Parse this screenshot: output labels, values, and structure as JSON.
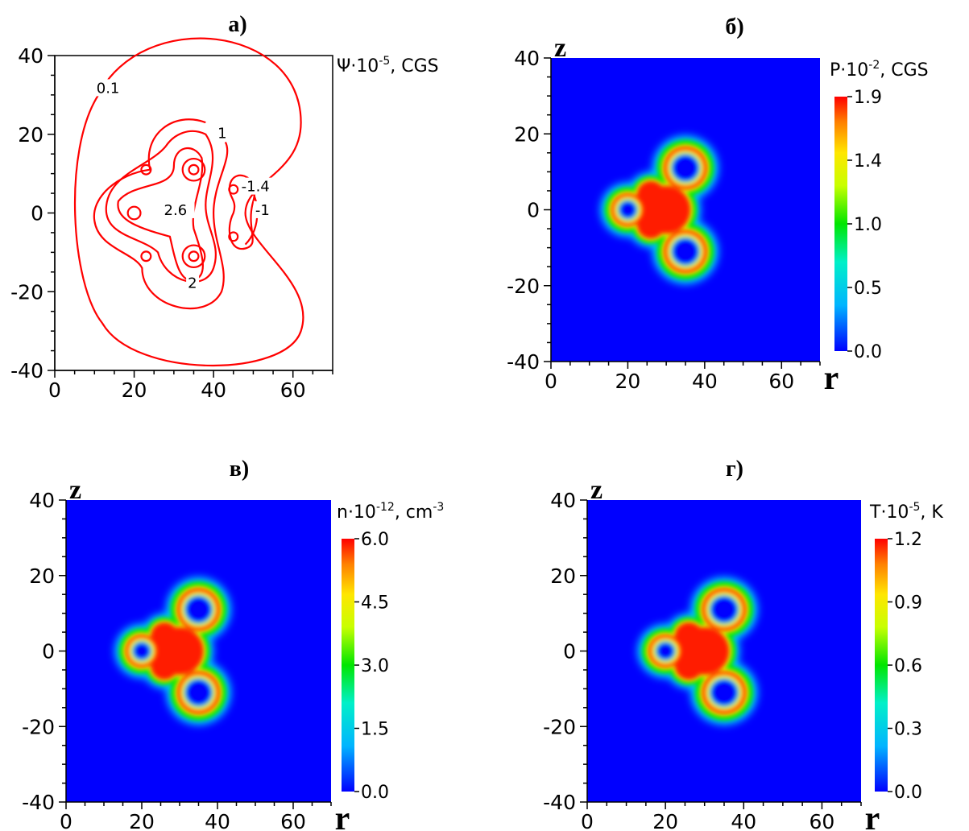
{
  "chart_data": [
    {
      "id": "a",
      "panel_label": "а)",
      "type": "contour",
      "quantity_label": "Ψ·10",
      "quantity_exp": "-5",
      "quantity_unit": ", CGS",
      "xlim": [
        0,
        70
      ],
      "ylim": [
        -40,
        40
      ],
      "x_ticks": [
        "0",
        "20",
        "40",
        "60"
      ],
      "y_ticks": [
        "40",
        "20",
        "0",
        "-20",
        "-40"
      ],
      "contour_labels": [
        "0.1",
        "1",
        "-1.4",
        "2.6",
        "-1",
        "2"
      ]
    },
    {
      "id": "b",
      "panel_label": "б)",
      "type": "heatmap",
      "axis_z": "z",
      "axis_r": "r",
      "quantity_label": "P·10",
      "quantity_exp": "-2",
      "quantity_unit": ", CGS",
      "xlim": [
        0,
        70
      ],
      "ylim": [
        -40,
        40
      ],
      "x_ticks": [
        "0",
        "20",
        "40",
        "60"
      ],
      "y_ticks": [
        "40",
        "20",
        "0",
        "-20",
        "-40"
      ],
      "colorbar_ticks": [
        "1.9",
        "1.4",
        "1.0",
        "0.5",
        "0.0"
      ],
      "colorbar_range": [
        0,
        1.9
      ]
    },
    {
      "id": "c",
      "panel_label": "в)",
      "type": "heatmap",
      "axis_z": "z",
      "axis_r": "r",
      "quantity_label": "n·10",
      "quantity_exp": "-12",
      "quantity_unit": ", cm",
      "quantity_unit_exp": "-3",
      "xlim": [
        0,
        70
      ],
      "ylim": [
        -40,
        40
      ],
      "x_ticks": [
        "0",
        "20",
        "40",
        "60"
      ],
      "y_ticks": [
        "40",
        "20",
        "0",
        "-20",
        "-40"
      ],
      "colorbar_ticks": [
        "6.0",
        "4.5",
        "3.0",
        "1.5",
        "0.0"
      ],
      "colorbar_range": [
        0,
        6.0
      ]
    },
    {
      "id": "d",
      "panel_label": "г)",
      "type": "heatmap",
      "axis_z": "z",
      "axis_r": "r",
      "quantity_label": "T·10",
      "quantity_exp": "-5",
      "quantity_unit": ", K",
      "xlim": [
        0,
        70
      ],
      "ylim": [
        -40,
        40
      ],
      "x_ticks": [
        "0",
        "20",
        "40",
        "60"
      ],
      "y_ticks": [
        "40",
        "20",
        "0",
        "-20",
        "-40"
      ],
      "colorbar_ticks": [
        "1.2",
        "0.9",
        "0.6",
        "0.3",
        "0.0"
      ],
      "colorbar_range": [
        0,
        1.2
      ]
    }
  ],
  "colors": {
    "contour": "#ff0000",
    "background_blue": "#0000ff",
    "jet": [
      "#0000ff",
      "#00bfff",
      "#00ffa0",
      "#00e600",
      "#c8ff00",
      "#ffe600",
      "#ff8000",
      "#ff0000"
    ]
  }
}
